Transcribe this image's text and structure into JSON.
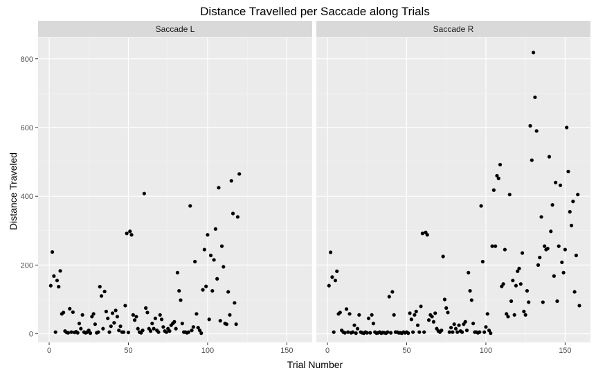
{
  "chart_data": {
    "type": "scatter",
    "title": "Distance Travelled per Saccade along Trials",
    "xlabel": "Trial Number",
    "ylabel": "Distance Traveled",
    "xlim": [
      -7,
      166
    ],
    "ylim": [
      -25,
      860
    ],
    "x_ticks": [
      0,
      50,
      100,
      150
    ],
    "y_ticks": [
      0,
      200,
      400,
      600,
      800
    ],
    "grid": true,
    "legend": "none",
    "panel_background": "#ebebeb",
    "strip_background": "#d9d9d9",
    "point_color": "#000000",
    "facets": [
      {
        "name": "Saccade L",
        "points": [
          [
            1,
            140
          ],
          [
            2,
            238
          ],
          [
            3,
            168
          ],
          [
            4,
            5
          ],
          [
            5,
            155
          ],
          [
            6,
            137
          ],
          [
            7,
            183
          ],
          [
            8,
            58
          ],
          [
            9,
            62
          ],
          [
            10,
            8
          ],
          [
            11,
            4
          ],
          [
            12,
            3
          ],
          [
            13,
            73
          ],
          [
            14,
            5
          ],
          [
            15,
            63
          ],
          [
            16,
            4
          ],
          [
            17,
            6
          ],
          [
            18,
            3
          ],
          [
            19,
            30
          ],
          [
            20,
            15
          ],
          [
            21,
            55
          ],
          [
            22,
            5
          ],
          [
            23,
            3
          ],
          [
            24,
            5
          ],
          [
            25,
            10
          ],
          [
            26,
            2
          ],
          [
            27,
            50
          ],
          [
            28,
            58
          ],
          [
            29,
            28
          ],
          [
            30,
            3
          ],
          [
            31,
            5
          ],
          [
            32,
            137
          ],
          [
            33,
            110
          ],
          [
            34,
            15
          ],
          [
            35,
            123
          ],
          [
            36,
            65
          ],
          [
            37,
            45
          ],
          [
            38,
            5
          ],
          [
            39,
            22
          ],
          [
            40,
            60
          ],
          [
            41,
            32
          ],
          [
            42,
            68
          ],
          [
            43,
            50
          ],
          [
            44,
            10
          ],
          [
            45,
            22
          ],
          [
            46,
            5
          ],
          [
            47,
            5
          ],
          [
            48,
            82
          ],
          [
            49,
            292
          ],
          [
            50,
            4
          ],
          [
            51,
            298
          ],
          [
            52,
            288
          ],
          [
            53,
            55
          ],
          [
            54,
            40
          ],
          [
            55,
            50
          ],
          [
            56,
            15
          ],
          [
            57,
            5
          ],
          [
            58,
            3
          ],
          [
            59,
            10
          ],
          [
            60,
            408
          ],
          [
            61,
            75
          ],
          [
            62,
            62
          ],
          [
            63,
            15
          ],
          [
            64,
            8
          ],
          [
            65,
            30
          ],
          [
            66,
            15
          ],
          [
            67,
            45
          ],
          [
            68,
            10
          ],
          [
            69,
            5
          ],
          [
            70,
            55
          ],
          [
            71,
            42
          ],
          [
            72,
            20
          ],
          [
            73,
            8
          ],
          [
            74,
            5
          ],
          [
            75,
            15
          ],
          [
            76,
            8
          ],
          [
            77,
            25
          ],
          [
            78,
            30
          ],
          [
            79,
            35
          ],
          [
            80,
            15
          ],
          [
            81,
            178
          ],
          [
            82,
            125
          ],
          [
            83,
            98
          ],
          [
            84,
            30
          ],
          [
            85,
            5
          ],
          [
            86,
            5
          ],
          [
            87,
            3
          ],
          [
            88,
            5
          ],
          [
            89,
            372
          ],
          [
            90,
            10
          ],
          [
            91,
            20
          ],
          [
            92,
            210
          ],
          [
            93,
            58
          ],
          [
            94,
            18
          ],
          [
            95,
            10
          ],
          [
            96,
            2
          ],
          [
            97,
            128
          ],
          [
            98,
            245
          ],
          [
            99,
            138
          ],
          [
            100,
            288
          ],
          [
            101,
            42
          ],
          [
            102,
            228
          ],
          [
            103,
            125
          ],
          [
            104,
            215
          ],
          [
            105,
            305
          ],
          [
            106,
            160
          ],
          [
            107,
            425
          ],
          [
            108,
            38
          ],
          [
            109,
            255
          ],
          [
            110,
            195
          ],
          [
            111,
            30
          ],
          [
            112,
            28
          ],
          [
            113,
            122
          ],
          [
            114,
            55
          ],
          [
            115,
            445
          ],
          [
            116,
            350
          ],
          [
            117,
            90
          ],
          [
            118,
            28
          ],
          [
            119,
            340
          ],
          [
            120,
            465
          ]
        ]
      },
      {
        "name": "Saccade R",
        "points": [
          [
            1,
            140
          ],
          [
            2,
            237
          ],
          [
            3,
            165
          ],
          [
            4,
            5
          ],
          [
            5,
            155
          ],
          [
            6,
            182
          ],
          [
            7,
            58
          ],
          [
            8,
            62
          ],
          [
            9,
            10
          ],
          [
            10,
            5
          ],
          [
            11,
            3
          ],
          [
            12,
            72
          ],
          [
            13,
            5
          ],
          [
            14,
            58
          ],
          [
            15,
            3
          ],
          [
            16,
            5
          ],
          [
            17,
            25
          ],
          [
            18,
            2
          ],
          [
            19,
            15
          ],
          [
            20,
            55
          ],
          [
            21,
            5
          ],
          [
            22,
            3
          ],
          [
            23,
            2
          ],
          [
            24,
            5
          ],
          [
            25,
            3
          ],
          [
            26,
            45
          ],
          [
            27,
            3
          ],
          [
            28,
            55
          ],
          [
            29,
            30
          ],
          [
            30,
            5
          ],
          [
            31,
            2
          ],
          [
            32,
            3
          ],
          [
            33,
            5
          ],
          [
            34,
            2
          ],
          [
            35,
            4
          ],
          [
            36,
            3
          ],
          [
            37,
            2
          ],
          [
            38,
            5
          ],
          [
            39,
            108
          ],
          [
            40,
            3
          ],
          [
            41,
            122
          ],
          [
            42,
            55
          ],
          [
            43,
            5
          ],
          [
            44,
            5
          ],
          [
            45,
            3
          ],
          [
            46,
            3
          ],
          [
            47,
            2
          ],
          [
            48,
            5
          ],
          [
            49,
            3
          ],
          [
            50,
            5
          ],
          [
            51,
            2
          ],
          [
            52,
            60
          ],
          [
            53,
            42
          ],
          [
            54,
            5
          ],
          [
            55,
            55
          ],
          [
            56,
            65
          ],
          [
            57,
            25
          ],
          [
            58,
            5
          ],
          [
            59,
            80
          ],
          [
            60,
            292
          ],
          [
            61,
            5
          ],
          [
            62,
            295
          ],
          [
            63,
            288
          ],
          [
            64,
            40
          ],
          [
            65,
            55
          ],
          [
            66,
            50
          ],
          [
            67,
            35
          ],
          [
            68,
            60
          ],
          [
            69,
            15
          ],
          [
            70,
            8
          ],
          [
            71,
            5
          ],
          [
            72,
            10
          ],
          [
            73,
            225
          ],
          [
            74,
            100
          ],
          [
            75,
            75
          ],
          [
            76,
            62
          ],
          [
            77,
            5
          ],
          [
            78,
            18
          ],
          [
            79,
            5
          ],
          [
            80,
            28
          ],
          [
            81,
            15
          ],
          [
            82,
            5
          ],
          [
            83,
            25
          ],
          [
            84,
            8
          ],
          [
            85,
            5
          ],
          [
            86,
            28
          ],
          [
            87,
            35
          ],
          [
            88,
            10
          ],
          [
            89,
            178
          ],
          [
            90,
            125
          ],
          [
            91,
            98
          ],
          [
            92,
            30
          ],
          [
            93,
            5
          ],
          [
            94,
            5
          ],
          [
            95,
            3
          ],
          [
            96,
            5
          ],
          [
            97,
            372
          ],
          [
            98,
            210
          ],
          [
            99,
            5
          ],
          [
            100,
            20
          ],
          [
            101,
            58
          ],
          [
            102,
            10
          ],
          [
            103,
            2
          ],
          [
            104,
            255
          ],
          [
            105,
            418
          ],
          [
            106,
            255
          ],
          [
            107,
            460
          ],
          [
            108,
            452
          ],
          [
            109,
            492
          ],
          [
            110,
            138
          ],
          [
            111,
            145
          ],
          [
            112,
            245
          ],
          [
            113,
            58
          ],
          [
            114,
            50
          ],
          [
            115,
            405
          ],
          [
            116,
            95
          ],
          [
            117,
            155
          ],
          [
            118,
            55
          ],
          [
            119,
            140
          ],
          [
            120,
            182
          ],
          [
            121,
            190
          ],
          [
            122,
            145
          ],
          [
            123,
            235
          ],
          [
            124,
            65
          ],
          [
            125,
            55
          ],
          [
            126,
            125
          ],
          [
            127,
            92
          ],
          [
            128,
            605
          ],
          [
            129,
            505
          ],
          [
            130,
            818
          ],
          [
            131,
            688
          ],
          [
            132,
            590
          ],
          [
            133,
            200
          ],
          [
            134,
            222
          ],
          [
            135,
            340
          ],
          [
            136,
            92
          ],
          [
            137,
            255
          ],
          [
            138,
            245
          ],
          [
            139,
            248
          ],
          [
            140,
            515
          ],
          [
            141,
            298
          ],
          [
            142,
            375
          ],
          [
            143,
            168
          ],
          [
            144,
            440
          ],
          [
            145,
            95
          ],
          [
            146,
            255
          ],
          [
            147,
            432
          ],
          [
            148,
            208
          ],
          [
            149,
            178
          ],
          [
            150,
            245
          ],
          [
            151,
            600
          ],
          [
            152,
            472
          ],
          [
            153,
            355
          ],
          [
            154,
            315
          ],
          [
            155,
            385
          ],
          [
            156,
            122
          ],
          [
            157,
            228
          ],
          [
            158,
            405
          ],
          [
            159,
            82
          ]
        ]
      }
    ]
  }
}
